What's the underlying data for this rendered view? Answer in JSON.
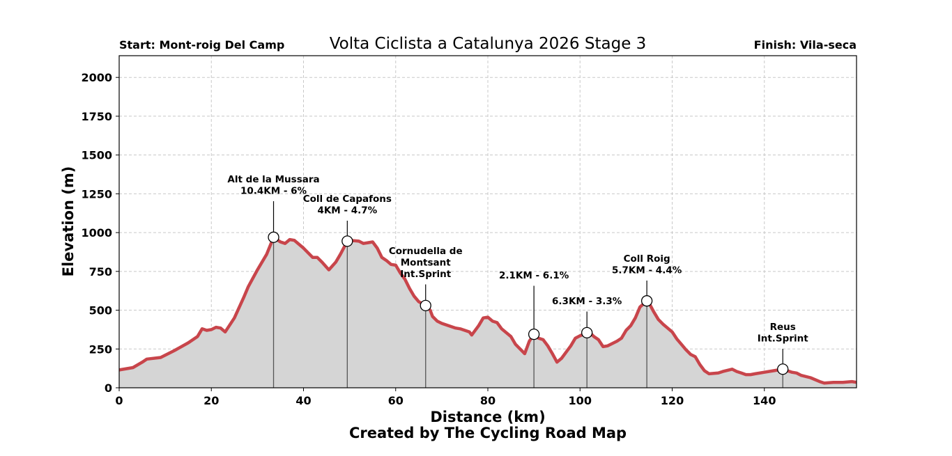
{
  "chart_data": {
    "type": "area",
    "title": "Volta Ciclista a Catalunya 2026 Stage 3",
    "start_label": "Start: Mont-roig Del Camp",
    "finish_label": "Finish: Vila-seca",
    "xlabel": "Distance (km)",
    "ylabel": "Elevation (m)",
    "credit": "Created by The Cycling Road Map",
    "xlim": [
      0,
      160
    ],
    "ylim": [
      0,
      2140
    ],
    "xticks": [
      0,
      20,
      40,
      60,
      80,
      100,
      120,
      140
    ],
    "yticks": [
      0,
      250,
      500,
      750,
      1000,
      1250,
      1500,
      1750,
      2000
    ],
    "grid": true,
    "line_color": "#c8454b",
    "fill_color": "#d5d5d5",
    "profile": [
      [
        0,
        115
      ],
      [
        3,
        130
      ],
      [
        5,
        165
      ],
      [
        6,
        185
      ],
      [
        9,
        195
      ],
      [
        12,
        240
      ],
      [
        15,
        290
      ],
      [
        17,
        330
      ],
      [
        18,
        380
      ],
      [
        19,
        370
      ],
      [
        20,
        375
      ],
      [
        21,
        390
      ],
      [
        22,
        385
      ],
      [
        23,
        360
      ],
      [
        25,
        450
      ],
      [
        27,
        580
      ],
      [
        28,
        650
      ],
      [
        30,
        760
      ],
      [
        32,
        860
      ],
      [
        33.5,
        970
      ],
      [
        35,
        940
      ],
      [
        36,
        930
      ],
      [
        37,
        955
      ],
      [
        38,
        950
      ],
      [
        40,
        900
      ],
      [
        42,
        840
      ],
      [
        43,
        840
      ],
      [
        44,
        810
      ],
      [
        45.5,
        760
      ],
      [
        47,
        810
      ],
      [
        48,
        860
      ],
      [
        49.5,
        945
      ],
      [
        50,
        950
      ],
      [
        52,
        945
      ],
      [
        53,
        930
      ],
      [
        54,
        935
      ],
      [
        55,
        940
      ],
      [
        56,
        900
      ],
      [
        57,
        840
      ],
      [
        58,
        820
      ],
      [
        59,
        795
      ],
      [
        60,
        790
      ],
      [
        61,
        740
      ],
      [
        62,
        700
      ],
      [
        63,
        640
      ],
      [
        64,
        590
      ],
      [
        65,
        555
      ],
      [
        66.5,
        530
      ],
      [
        67.5,
        500
      ],
      [
        68,
        460
      ],
      [
        69,
        430
      ],
      [
        70,
        415
      ],
      [
        72,
        395
      ],
      [
        73,
        385
      ],
      [
        74,
        380
      ],
      [
        75,
        370
      ],
      [
        76,
        360
      ],
      [
        76.5,
        340
      ],
      [
        78,
        400
      ],
      [
        79,
        450
      ],
      [
        80,
        455
      ],
      [
        81,
        430
      ],
      [
        82,
        420
      ],
      [
        83,
        380
      ],
      [
        85,
        330
      ],
      [
        86,
        280
      ],
      [
        88,
        220
      ],
      [
        89,
        300
      ],
      [
        90,
        345
      ],
      [
        91,
        320
      ],
      [
        92,
        310
      ],
      [
        93,
        270
      ],
      [
        94,
        220
      ],
      [
        95,
        165
      ],
      [
        96,
        190
      ],
      [
        97,
        230
      ],
      [
        98,
        270
      ],
      [
        99,
        320
      ],
      [
        100,
        335
      ],
      [
        101.5,
        355
      ],
      [
        102,
        360
      ],
      [
        103,
        330
      ],
      [
        104,
        310
      ],
      [
        105,
        265
      ],
      [
        106,
        270
      ],
      [
        108,
        300
      ],
      [
        109,
        320
      ],
      [
        110,
        370
      ],
      [
        111,
        400
      ],
      [
        112,
        450
      ],
      [
        113,
        520
      ],
      [
        114.5,
        560
      ],
      [
        115,
        545
      ],
      [
        116,
        490
      ],
      [
        117,
        440
      ],
      [
        118,
        410
      ],
      [
        119,
        385
      ],
      [
        120,
        360
      ],
      [
        121,
        315
      ],
      [
        122,
        280
      ],
      [
        123,
        245
      ],
      [
        124,
        215
      ],
      [
        125,
        200
      ],
      [
        126,
        150
      ],
      [
        127,
        110
      ],
      [
        128,
        90
      ],
      [
        130,
        95
      ],
      [
        131,
        105
      ],
      [
        133,
        120
      ],
      [
        134,
        105
      ],
      [
        135,
        95
      ],
      [
        136,
        85
      ],
      [
        137,
        85
      ],
      [
        138,
        90
      ],
      [
        140,
        100
      ],
      [
        142,
        110
      ],
      [
        143,
        115
      ],
      [
        144,
        120
      ],
      [
        145,
        110
      ],
      [
        146,
        100
      ],
      [
        147,
        95
      ],
      [
        148,
        80
      ],
      [
        150,
        65
      ],
      [
        152,
        40
      ],
      [
        153,
        30
      ],
      [
        155,
        35
      ],
      [
        157,
        35
      ],
      [
        159,
        40
      ],
      [
        160,
        35
      ]
    ],
    "annotations": [
      {
        "km": 33.5,
        "elev": 970,
        "lines": [
          "Alt de la Mussara",
          "10.4KM - 6%"
        ]
      },
      {
        "km": 49.5,
        "elev": 945,
        "lines": [
          "Coll de Capafons",
          "4KM - 4.7%"
        ]
      },
      {
        "km": 66.5,
        "elev": 530,
        "lines": [
          "Cornudella de",
          "Montsant",
          "Int.Sprint"
        ]
      },
      {
        "km": 90,
        "elev": 345,
        "lines": [
          "2.1KM - 6.1%"
        ]
      },
      {
        "km": 101.5,
        "elev": 355,
        "lines": [
          "6.3KM - 3.3%"
        ]
      },
      {
        "km": 114.5,
        "elev": 560,
        "lines": [
          "Coll Roig",
          "5.7KM - 4.4%"
        ]
      },
      {
        "km": 144,
        "elev": 120,
        "lines": [
          "Reus",
          "Int.Sprint"
        ]
      }
    ]
  }
}
